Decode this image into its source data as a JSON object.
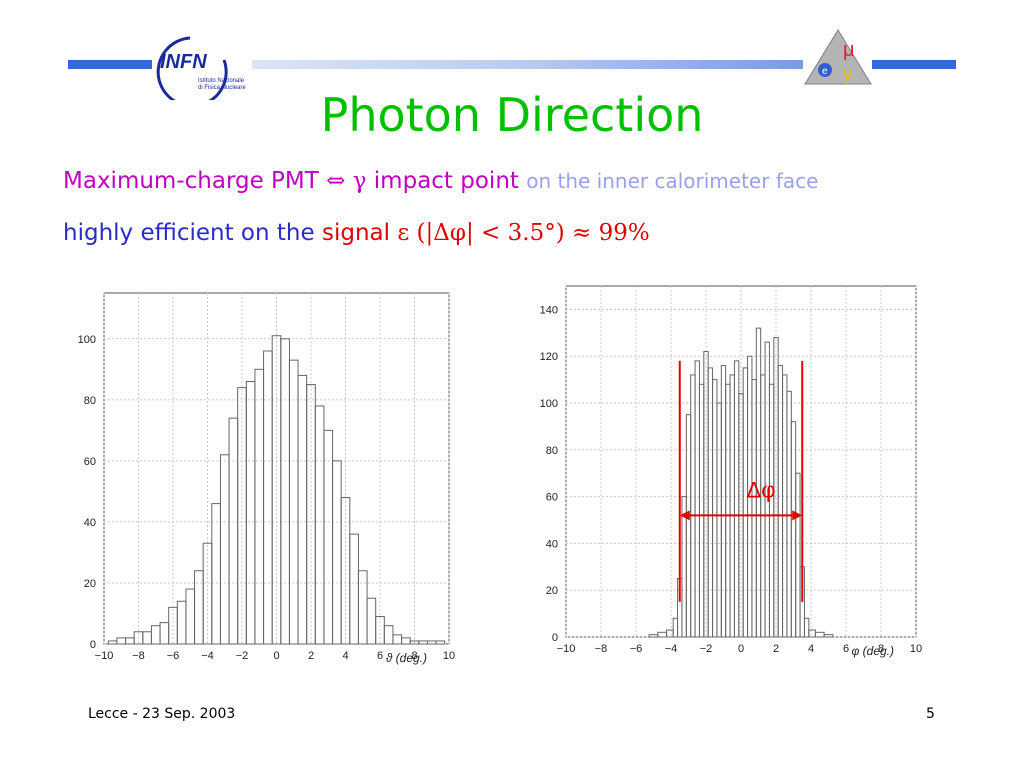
{
  "header": {
    "logo_text": "INFN",
    "logo_sub1": "Istituto Nazionale",
    "logo_sub2": "di Fisica Nucleare",
    "meg_logo_symbols": [
      "μ",
      "e",
      "γ"
    ]
  },
  "title": "Photon Direction",
  "line1": {
    "part1": "Maximum-charge PMT",
    "arrow": "⇔",
    "gamma": "γ",
    "part2": "impact point",
    "part3": "on the inner calorimeter face"
  },
  "line2": {
    "part1": "highly efficient on the",
    "signal": "signal",
    "formula": "ε (|Δφ| < 3.5°) ≈ 99%"
  },
  "footer": {
    "left": "Lecce - 23 Sep.  2003",
    "page": "5"
  },
  "chart_data": [
    {
      "type": "bar",
      "xlabel": "ϑ (deg.)",
      "xlim": [
        -10,
        10
      ],
      "ylim": [
        0,
        115
      ],
      "xticks": [
        -10,
        -8,
        -6,
        -4,
        -2,
        0,
        2,
        4,
        6,
        8,
        10
      ],
      "yticks": [
        0,
        20,
        40,
        60,
        80,
        100
      ],
      "x": [
        -9.5,
        -9,
        -8.5,
        -8,
        -7.5,
        -7,
        -6.5,
        -6,
        -5.5,
        -5,
        -4.5,
        -4,
        -3.5,
        -3,
        -2.5,
        -2,
        -1.5,
        -1,
        -0.5,
        0,
        0.5,
        1,
        1.5,
        2,
        2.5,
        3,
        3.5,
        4,
        4.5,
        5,
        5.5,
        6,
        6.5,
        7,
        7.5,
        8,
        8.5,
        9,
        9.5
      ],
      "values": [
        1,
        2,
        2,
        4,
        4,
        6,
        7,
        12,
        14,
        18,
        24,
        33,
        46,
        62,
        74,
        84,
        86,
        90,
        96,
        101,
        100,
        93,
        88,
        85,
        78,
        70,
        60,
        48,
        36,
        24,
        15,
        9,
        6,
        3,
        2,
        1,
        1,
        1,
        1
      ]
    },
    {
      "type": "bar",
      "xlabel": "φ (deg.)",
      "xlim": [
        -10,
        10
      ],
      "ylim": [
        0,
        150
      ],
      "xticks": [
        -10,
        -8,
        -6,
        -4,
        -2,
        0,
        2,
        4,
        6,
        8,
        10
      ],
      "yticks": [
        0,
        20,
        40,
        60,
        80,
        100,
        120,
        140
      ],
      "x": [
        -5.5,
        -5,
        -4.5,
        -4,
        -3.75,
        -3.5,
        -3.25,
        -3,
        -2.75,
        -2.5,
        -2.25,
        -2,
        -1.75,
        -1.5,
        -1.25,
        -1,
        -0.75,
        -0.5,
        -0.25,
        0,
        0.25,
        0.5,
        0.75,
        1,
        1.25,
        1.5,
        1.75,
        2,
        2.25,
        2.5,
        2.75,
        3,
        3.25,
        3.5,
        3.75,
        4,
        4.5,
        5,
        5.5
      ],
      "values": [
        0,
        1,
        2,
        3,
        8,
        25,
        60,
        95,
        112,
        118,
        108,
        122,
        115,
        110,
        100,
        116,
        108,
        112,
        118,
        104,
        115,
        120,
        110,
        132,
        112,
        126,
        108,
        128,
        116,
        112,
        105,
        92,
        70,
        30,
        8,
        3,
        2,
        1,
        0
      ],
      "annotation": "Δφ",
      "cut_lines": [
        -3.5,
        3.5
      ]
    }
  ]
}
